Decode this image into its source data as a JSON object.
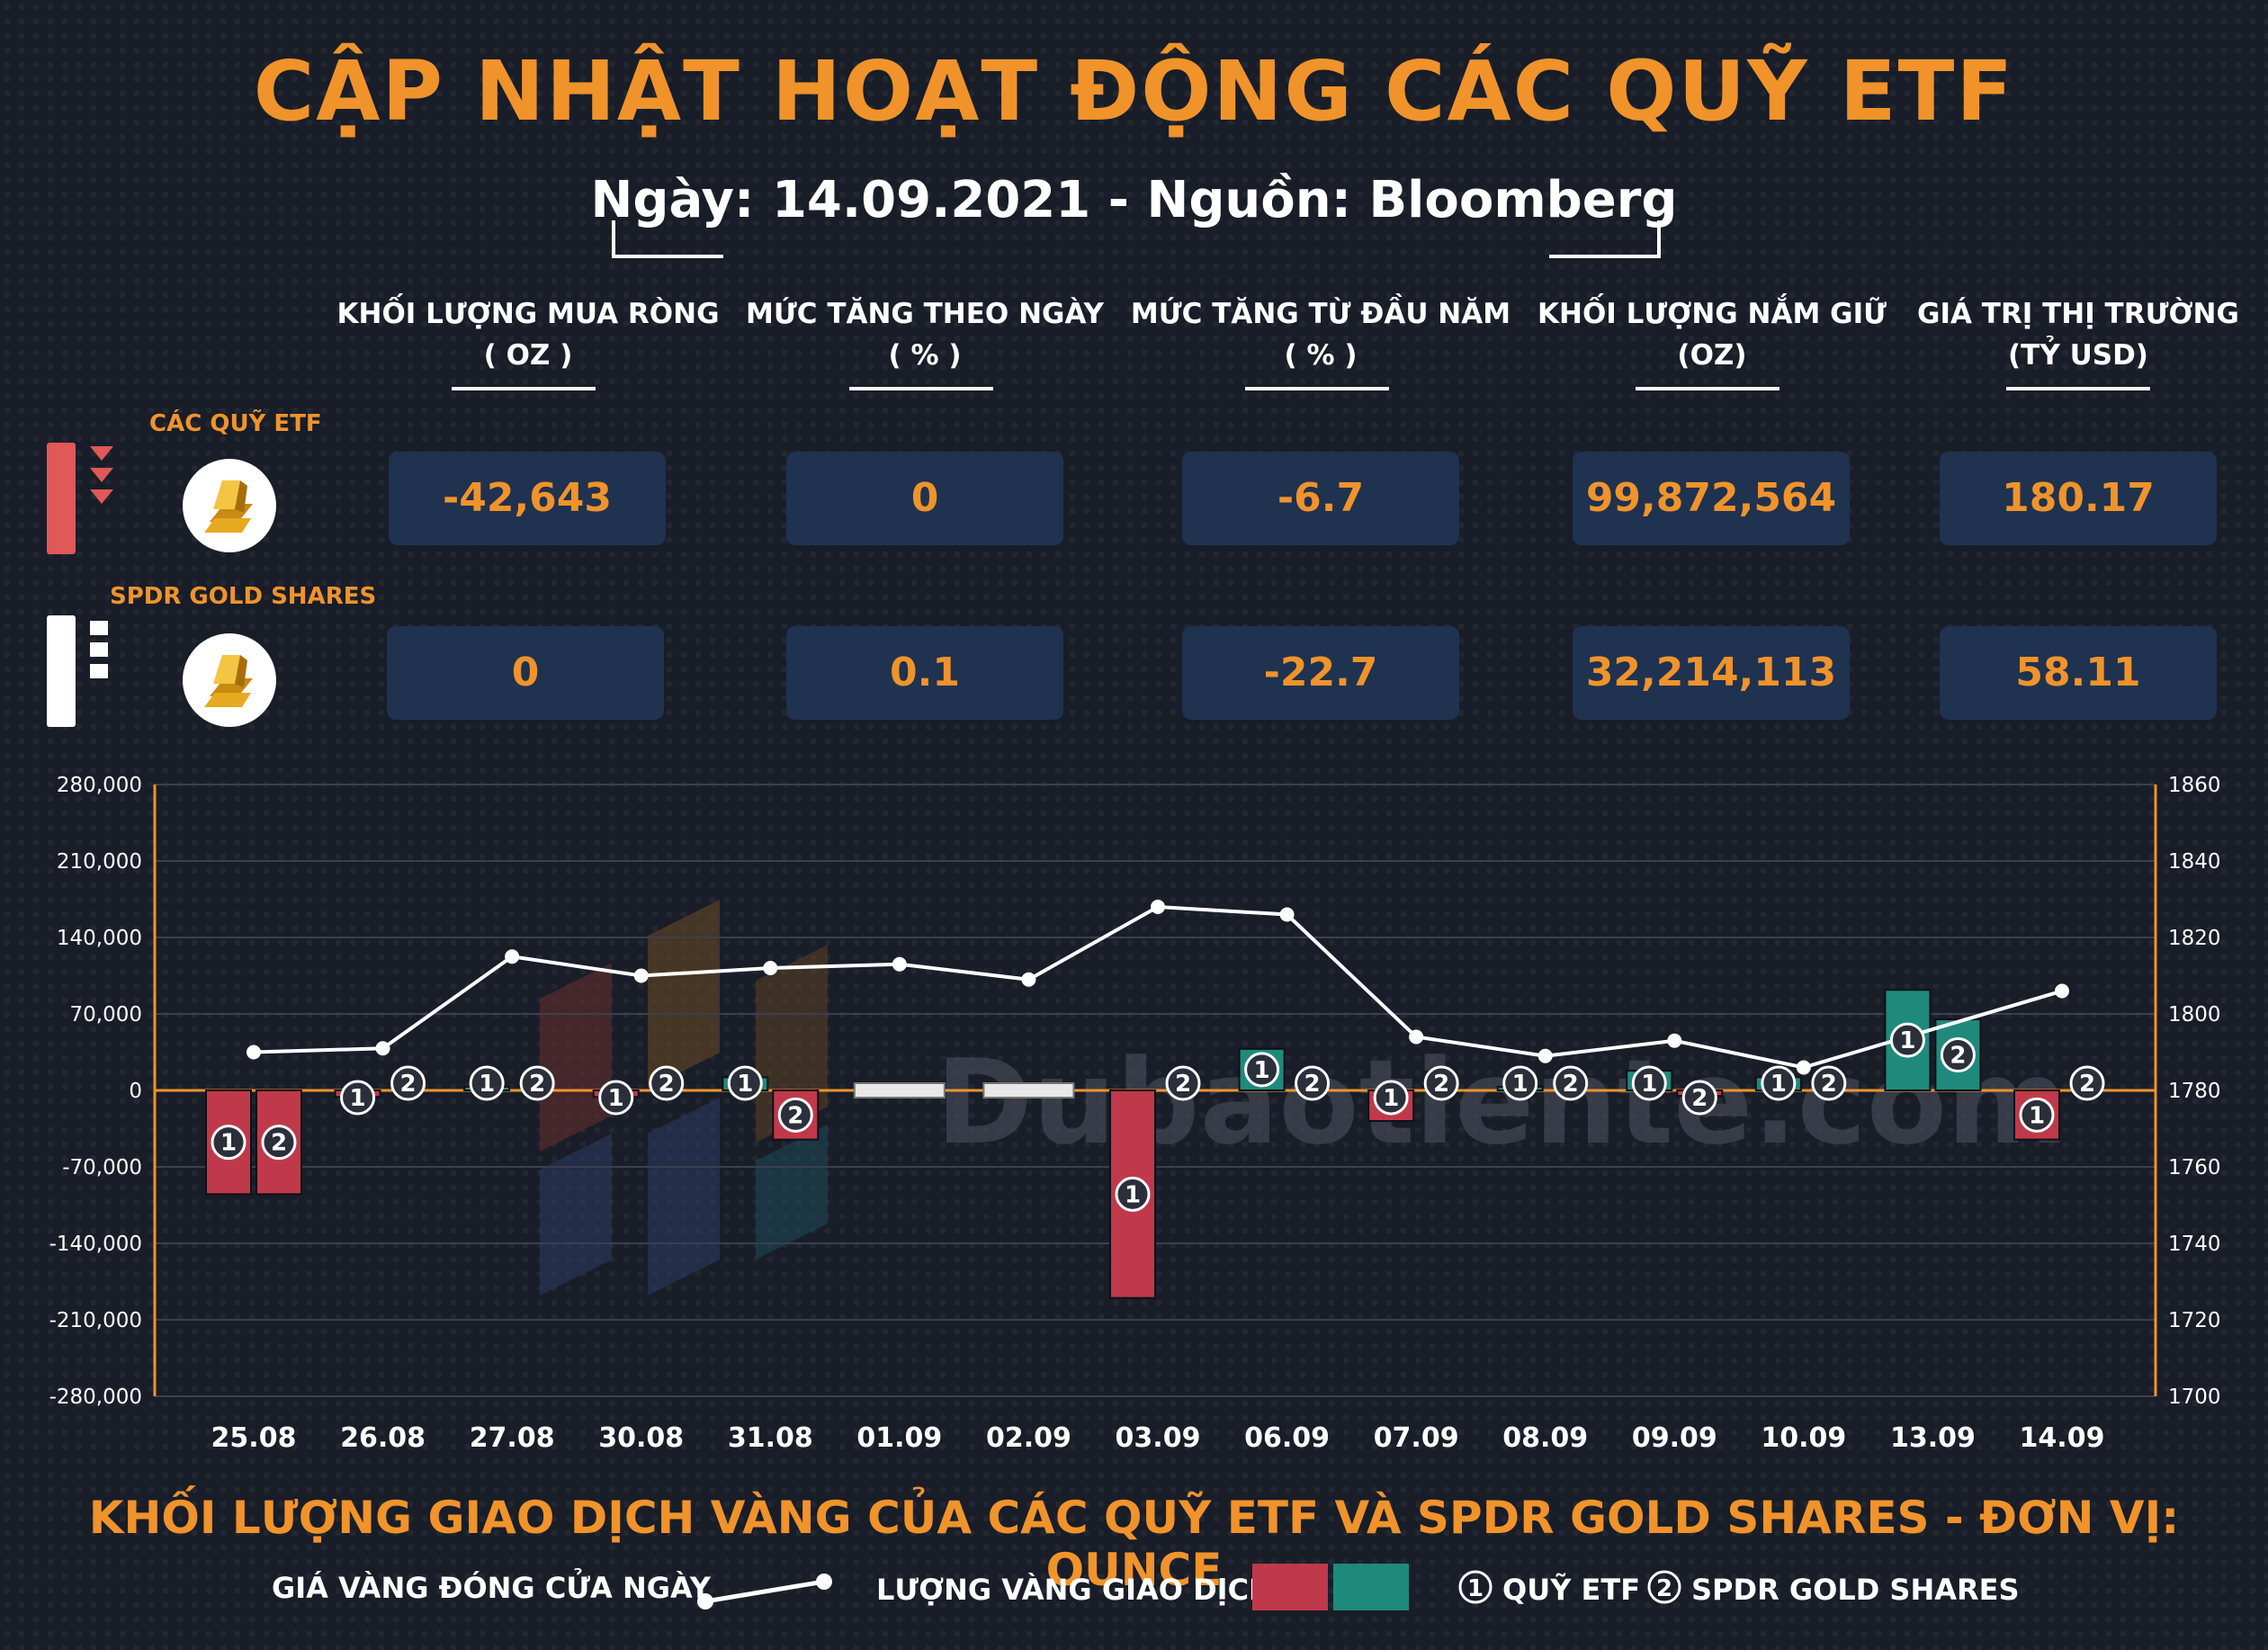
{
  "header": {
    "title": "CẬP NHẬT HOẠT ĐỘNG CÁC QUỸ ETF",
    "subtitle": "Ngày: 14.09.2021 - Nguồn: Bloomberg"
  },
  "columns": [
    {
      "label": "KHỐI LƯỢNG MUA RÒNG",
      "unit": "( OZ )"
    },
    {
      "label": "MỨC TĂNG THEO NGÀY",
      "unit": "( % )"
    },
    {
      "label": "MỨC TĂNG TỪ ĐẦU NĂM",
      "unit": "( % )"
    },
    {
      "label": "KHỐI LƯỢNG NẮM GIỮ",
      "unit": "(OZ)"
    },
    {
      "label": "GIÁ TRỊ THỊ TRƯỜNG",
      "unit": "(TỶ USD)"
    }
  ],
  "rows": [
    {
      "label": "CÁC QUỸ ETF",
      "values": [
        "-42,643",
        "0",
        "-6.7",
        "99,872,564",
        "180.17"
      ]
    },
    {
      "label": "SPDR GOLD SHARES",
      "values": [
        "0",
        "0.1",
        "-22.7",
        "32,214,113",
        "58.11"
      ]
    }
  ],
  "watermark": "Dubaotiente.com",
  "chart_data": {
    "type": "bar",
    "title": "KHỐI LƯỢNG GIAO DỊCH VÀNG CỦA CÁC QUỸ ETF VÀ SPDR GOLD SHARES - ĐƠN VỊ: OUNCE",
    "categories": [
      "25.08",
      "26.08",
      "27.08",
      "30.08",
      "31.08",
      "01.09",
      "02.09",
      "03.09",
      "06.09",
      "07.09",
      "08.09",
      "09.09",
      "10.09",
      "13.09",
      "14.09"
    ],
    "y_left": {
      "ticks": [
        "280,000",
        "210,000",
        "140,000",
        "70,000",
        "0",
        "-70,000",
        "-140,000",
        "-210,000",
        "-280,000"
      ],
      "ylim": [
        -280000,
        280000
      ]
    },
    "y_right": {
      "ticks": [
        "1860",
        "1840",
        "1820",
        "1800",
        "1780",
        "1760",
        "1740",
        "1720",
        "1700"
      ],
      "ylim": [
        1700,
        1860
      ]
    },
    "series": [
      {
        "name": "QUỸ ETF",
        "marker": "1",
        "type": "bar",
        "values": [
          -95000,
          -6000,
          2000,
          -6000,
          12000,
          null,
          null,
          -190000,
          38000,
          -28000,
          3000,
          18000,
          12000,
          92000,
          -45000
        ]
      },
      {
        "name": "SPDR GOLD SHARES",
        "marker": "2",
        "type": "bar",
        "values": [
          -95000,
          0,
          0,
          0,
          -45000,
          null,
          null,
          0,
          0,
          0,
          0,
          -5000,
          0,
          65000,
          0
        ]
      },
      {
        "name": "GIÁ VÀNG ĐÓNG CỬA NGÀY",
        "type": "line",
        "values": [
          1790,
          1791,
          1815,
          1810,
          1812,
          1813,
          1809,
          1828,
          1826,
          1794,
          1789,
          1793,
          1786,
          null,
          1806
        ]
      }
    ],
    "colors": {
      "negative": "#c0394a",
      "positive": "#1f8a7c",
      "line": "#ffffff",
      "axis": "#f0932b",
      "zero_line": "#f0932b"
    },
    "grid": true
  },
  "legend": {
    "price_label": "GIÁ VÀNG ĐÓNG CỬA NGÀY",
    "volume_label": "LƯỢNG VÀNG GIAO DỊCH",
    "etf_marker": "1",
    "etf_label": "QUỸ ETF",
    "spdr_marker": "2",
    "spdr_label": "SPDR GOLD SHARES"
  }
}
